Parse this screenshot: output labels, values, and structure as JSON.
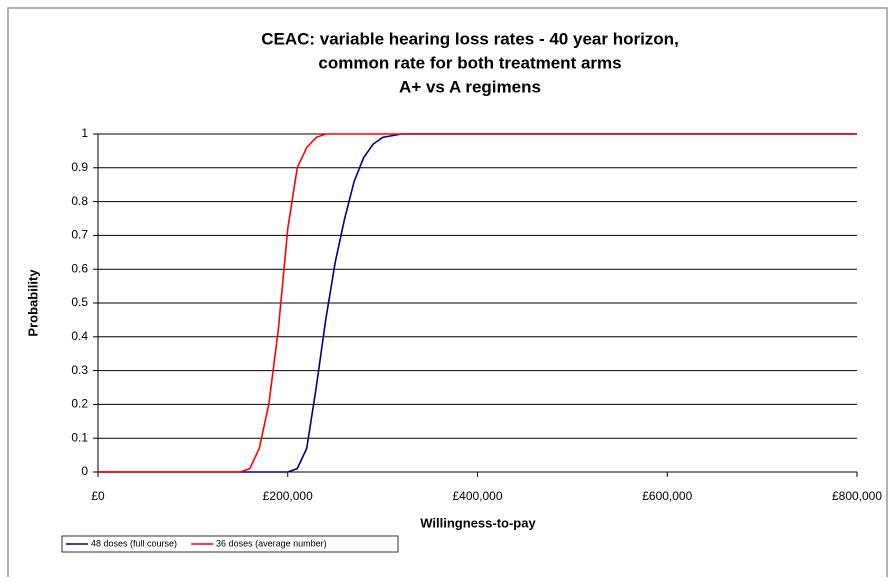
{
  "chart_data": {
    "type": "line",
    "title": [
      "CEAC: variable hearing loss rates - 40 year horizon,",
      "common rate for both treatment arms",
      "A+ vs A regimens"
    ],
    "x_label": "Willingness-to-pay",
    "y_label": "Probability",
    "x": [
      0,
      150000,
      160000,
      170000,
      180000,
      190000,
      200000,
      210000,
      220000,
      230000,
      240000,
      250000,
      260000,
      270000,
      280000,
      290000,
      300000,
      320000,
      800000
    ],
    "series": [
      {
        "name": "48 doses (full course)",
        "color": "#000080",
        "values": [
          0,
          0,
          0,
          0,
          0,
          0,
          0,
          0.01,
          0.07,
          0.25,
          0.45,
          0.62,
          0.75,
          0.86,
          0.93,
          0.97,
          0.99,
          1,
          1
        ]
      },
      {
        "name": "36 doses (average number)",
        "color": "#ff0000",
        "values": [
          0,
          0,
          0.01,
          0.07,
          0.2,
          0.42,
          0.72,
          0.9,
          0.96,
          0.99,
          1,
          1,
          1,
          1,
          1,
          1,
          1,
          1,
          1
        ]
      }
    ],
    "xlim": [
      0,
      800000
    ],
    "xticks": [
      {
        "value": 0,
        "label": "£0"
      },
      {
        "value": 200000,
        "label": "£200,000"
      },
      {
        "value": 400000,
        "label": "£400,000"
      },
      {
        "value": 600000,
        "label": "£600,000"
      },
      {
        "value": 800000,
        "label": "£800,000"
      }
    ],
    "ylim": [
      0,
      1
    ],
    "yticks": [
      0,
      0.1,
      0.2,
      0.3,
      0.4,
      0.5,
      0.6,
      0.7,
      0.8,
      0.9,
      1
    ],
    "grid": true,
    "legend": "bottom-left"
  }
}
